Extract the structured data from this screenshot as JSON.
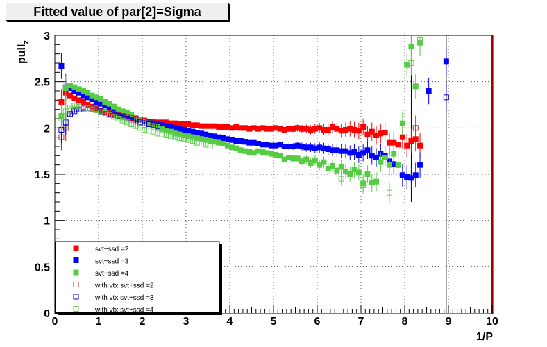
{
  "chart_data": {
    "type": "scatter",
    "title": "Fitted value of par[2]=Sigma",
    "xlabel": "1/P",
    "ylabel": "pull",
    "ylabel_sub": "z",
    "xlim": [
      0,
      10
    ],
    "ylim": [
      0,
      3
    ],
    "x_ticks": [
      "0",
      "1",
      "2",
      "3",
      "4",
      "5",
      "6",
      "7",
      "8",
      "9",
      "10"
    ],
    "y_ticks": [
      "0",
      "0.5",
      "1",
      "1.5",
      "2",
      "2.5",
      "3"
    ],
    "grid": true,
    "legend_position": "bottom-left",
    "series": [
      {
        "name": "svt+ssd =2",
        "color": "#ff0000",
        "marker": "filled-square",
        "x": [
          0.15,
          0.25,
          0.35,
          0.45,
          0.55,
          0.65,
          0.75,
          0.85,
          0.95,
          1.05,
          1.15,
          1.25,
          1.35,
          1.45,
          1.55,
          1.65,
          1.75,
          1.85,
          1.95,
          2.05,
          2.15,
          2.25,
          2.35,
          2.45,
          2.55,
          2.65,
          2.75,
          2.85,
          2.95,
          3.05,
          3.15,
          3.25,
          3.35,
          3.45,
          3.55,
          3.65,
          3.75,
          3.85,
          3.95,
          4.05,
          4.15,
          4.25,
          4.35,
          4.45,
          4.55,
          4.65,
          4.75,
          4.85,
          4.95,
          5.05,
          5.15,
          5.25,
          5.35,
          5.45,
          5.55,
          5.65,
          5.75,
          5.85,
          5.95,
          6.05,
          6.15,
          6.25,
          6.35,
          6.45,
          6.55,
          6.65,
          6.75,
          6.85,
          6.95,
          7.05,
          7.15,
          7.25,
          7.35,
          7.45,
          7.55,
          7.65,
          7.75,
          7.85,
          7.95,
          8.05,
          8.15,
          8.25,
          8.35
        ],
        "y": [
          2.28,
          2.38,
          2.35,
          2.32,
          2.3,
          2.28,
          2.25,
          2.23,
          2.21,
          2.19,
          2.17,
          2.15,
          2.14,
          2.13,
          2.12,
          2.11,
          2.1,
          2.09,
          2.09,
          2.08,
          2.07,
          2.07,
          2.06,
          2.06,
          2.06,
          2.05,
          2.05,
          2.04,
          2.04,
          2.04,
          2.03,
          2.03,
          2.02,
          2.02,
          2.02,
          2.02,
          2.01,
          2.01,
          2.01,
          2.0,
          2.01,
          2.0,
          2.0,
          1.99,
          2.0,
          1.99,
          2.0,
          1.99,
          1.99,
          2.0,
          1.99,
          1.98,
          1.99,
          1.99,
          2.0,
          1.99,
          1.99,
          1.98,
          1.99,
          2.0,
          1.98,
          1.98,
          2.01,
          1.99,
          1.97,
          1.98,
          1.99,
          1.98,
          1.97,
          2.01,
          1.93,
          1.96,
          1.92,
          1.94,
          1.95,
          1.84,
          1.84,
          1.82,
          1.9,
          1.81,
          1.86,
          1.88,
          1.81
        ]
      },
      {
        "name": "svt+ssd =3",
        "color": "#0000ff",
        "marker": "filled-square",
        "x": [
          0.15,
          0.25,
          0.35,
          0.45,
          0.55,
          0.65,
          0.75,
          0.85,
          0.95,
          1.05,
          1.15,
          1.25,
          1.35,
          1.45,
          1.55,
          1.65,
          1.75,
          1.85,
          1.95,
          2.05,
          2.15,
          2.25,
          2.35,
          2.45,
          2.55,
          2.65,
          2.75,
          2.85,
          2.95,
          3.05,
          3.15,
          3.25,
          3.35,
          3.45,
          3.55,
          3.65,
          3.75,
          3.85,
          3.95,
          4.05,
          4.15,
          4.25,
          4.35,
          4.45,
          4.55,
          4.65,
          4.75,
          4.85,
          4.95,
          5.05,
          5.15,
          5.25,
          5.35,
          5.45,
          5.55,
          5.65,
          5.75,
          5.85,
          5.95,
          6.05,
          6.15,
          6.25,
          6.35,
          6.45,
          6.55,
          6.65,
          6.75,
          6.85,
          6.95,
          7.05,
          7.15,
          7.25,
          7.35,
          7.45,
          7.55,
          7.65,
          7.75,
          7.85,
          7.95,
          8.05,
          8.15,
          8.25,
          8.35,
          8.55,
          8.95
        ],
        "y": [
          2.67,
          2.44,
          2.43,
          2.4,
          2.38,
          2.35,
          2.33,
          2.31,
          2.28,
          2.26,
          2.24,
          2.22,
          2.2,
          2.18,
          2.16,
          2.14,
          2.12,
          2.1,
          2.09,
          2.07,
          2.06,
          2.05,
          2.04,
          2.03,
          2.02,
          2.01,
          2.0,
          1.99,
          1.98,
          1.97,
          1.96,
          1.95,
          1.94,
          1.93,
          1.92,
          1.91,
          1.9,
          1.89,
          1.88,
          1.87,
          1.86,
          1.86,
          1.85,
          1.84,
          1.84,
          1.83,
          1.82,
          1.82,
          1.81,
          1.81,
          1.82,
          1.8,
          1.8,
          1.8,
          1.81,
          1.8,
          1.79,
          1.79,
          1.78,
          1.79,
          1.78,
          1.77,
          1.76,
          1.76,
          1.75,
          1.75,
          1.73,
          1.74,
          1.71,
          1.73,
          1.76,
          1.7,
          1.68,
          1.72,
          1.7,
          1.64,
          1.61,
          1.6,
          1.49,
          1.47,
          1.46,
          1.49,
          1.6,
          2.4,
          2.72
        ]
      },
      {
        "name": "svt+ssd =4",
        "color": "#55cc44",
        "marker": "filled-square",
        "x": [
          0.15,
          0.25,
          0.35,
          0.45,
          0.55,
          0.65,
          0.75,
          0.85,
          0.95,
          1.05,
          1.15,
          1.25,
          1.35,
          1.45,
          1.55,
          1.65,
          1.75,
          1.85,
          1.95,
          2.05,
          2.15,
          2.25,
          2.35,
          2.45,
          2.55,
          2.65,
          2.75,
          2.85,
          2.95,
          3.05,
          3.15,
          3.25,
          3.35,
          3.45,
          3.55,
          3.65,
          3.75,
          3.85,
          3.95,
          4.05,
          4.15,
          4.25,
          4.35,
          4.45,
          4.55,
          4.65,
          4.75,
          4.85,
          4.95,
          5.05,
          5.15,
          5.25,
          5.35,
          5.45,
          5.55,
          5.65,
          5.75,
          5.85,
          5.95,
          6.05,
          6.15,
          6.25,
          6.35,
          6.45,
          6.55,
          6.65,
          6.75,
          6.85,
          6.95,
          7.05,
          7.15,
          7.25,
          7.35,
          7.45,
          7.55,
          7.65,
          7.75,
          7.85,
          7.95,
          8.05,
          8.15,
          8.25,
          8.35
        ],
        "y": [
          2.13,
          2.43,
          2.46,
          2.44,
          2.42,
          2.4,
          2.38,
          2.35,
          2.33,
          2.31,
          2.28,
          2.26,
          2.23,
          2.2,
          2.18,
          2.16,
          2.14,
          2.11,
          2.09,
          2.07,
          2.05,
          2.03,
          2.01,
          1.99,
          1.97,
          1.96,
          1.94,
          1.93,
          1.92,
          1.91,
          1.9,
          1.89,
          1.88,
          1.87,
          1.86,
          1.85,
          1.84,
          1.83,
          1.81,
          1.79,
          1.78,
          1.76,
          1.75,
          1.74,
          1.73,
          1.75,
          1.74,
          1.73,
          1.72,
          1.71,
          1.7,
          1.66,
          1.68,
          1.67,
          1.67,
          1.64,
          1.66,
          1.62,
          1.65,
          1.6,
          1.63,
          1.56,
          1.59,
          1.54,
          1.58,
          1.53,
          1.5,
          1.55,
          1.52,
          1.4,
          1.5,
          1.41,
          1.42,
          1.63,
          1.68,
          1.6,
          1.72,
          1.6,
          2.05,
          2.68,
          2.88,
          2.45,
          2.92
        ]
      },
      {
        "name": "with vtx svt+ssd =2",
        "color": "#bb2222",
        "marker": "open-square",
        "x": [
          0.15,
          0.25,
          0.35,
          0.45,
          0.55,
          0.65,
          0.75,
          0.85,
          0.95,
          1.05,
          1.15,
          1.25,
          1.35,
          1.45,
          1.55,
          1.65,
          1.75,
          1.85,
          1.95,
          2.05,
          2.15,
          2.25,
          2.35,
          8.25
        ],
        "y": [
          1.9,
          2.0,
          2.15,
          2.2,
          2.23,
          2.23,
          2.22,
          2.21,
          2.2,
          2.19,
          2.17,
          2.16,
          2.15,
          2.14,
          2.13,
          2.12,
          2.11,
          2.1,
          2.09,
          2.08,
          2.07,
          2.06,
          2.05,
          2.0
        ]
      },
      {
        "name": "with vtx svt+ssd =3",
        "color": "#0000cc",
        "marker": "open-square",
        "x": [
          0.15,
          0.25,
          0.35,
          0.45,
          0.55,
          0.65,
          0.75,
          0.85,
          0.95,
          1.05,
          1.15,
          1.25,
          1.35,
          1.45,
          1.55,
          1.65,
          1.75,
          1.85,
          1.95,
          2.05,
          2.15,
          2.25,
          2.35,
          8.95
        ],
        "y": [
          1.98,
          2.06,
          2.15,
          2.18,
          2.2,
          2.21,
          2.21,
          2.2,
          2.19,
          2.18,
          2.17,
          2.15,
          2.14,
          2.13,
          2.12,
          2.1,
          2.09,
          2.07,
          2.06,
          2.05,
          2.04,
          2.03,
          2.02,
          2.33
        ]
      },
      {
        "name": "with vtx svt+ssd =4",
        "color": "#66cc55",
        "marker": "open-square",
        "x": [
          0.15,
          0.25,
          0.35,
          0.45,
          0.55,
          0.65,
          0.75,
          0.85,
          0.95,
          1.05,
          1.15,
          1.25,
          1.35,
          1.45,
          1.55,
          1.65,
          1.75,
          1.85,
          1.95,
          2.05,
          2.15,
          2.25,
          2.35,
          2.45,
          2.55,
          2.65,
          2.75,
          2.85,
          2.95,
          3.05,
          3.15,
          3.25,
          3.35,
          3.45,
          3.55,
          6.55,
          7.05,
          7.65,
          8.15,
          8.35
        ],
        "y": [
          2.1,
          2.18,
          2.22,
          2.24,
          2.23,
          2.22,
          2.21,
          2.2,
          2.19,
          2.17,
          2.16,
          2.14,
          2.12,
          2.1,
          2.08,
          2.06,
          2.04,
          2.02,
          2.0,
          1.98,
          1.97,
          1.96,
          1.94,
          1.93,
          1.92,
          1.91,
          1.9,
          1.89,
          1.88,
          1.87,
          1.86,
          1.84,
          1.83,
          1.82,
          1.8,
          1.45,
          1.38,
          1.3,
          2.7,
          2.95
        ]
      }
    ]
  }
}
